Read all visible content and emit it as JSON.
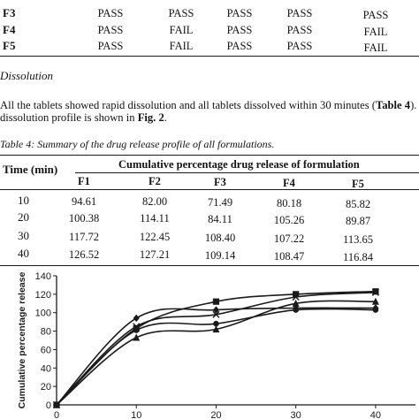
{
  "test_table": {
    "rows": [
      {
        "label": "F3",
        "cells": [
          "PASS",
          "PASS",
          "PASS",
          "PASS",
          "PASS"
        ]
      },
      {
        "label": "F4",
        "cells": [
          "PASS",
          "FAIL",
          "PASS",
          "PASS",
          "FAIL"
        ]
      },
      {
        "label": "F5",
        "cells": [
          "PASS",
          "FAIL",
          "PASS",
          "PASS",
          "FAIL"
        ]
      }
    ]
  },
  "dissolution": {
    "heading": "Dissolution",
    "para_line1_a": "All the tablets showed rapid dissolution and all tablets dissolved within 30 minutes (",
    "para_line1_b": "Table 4",
    "para_line1_c": "). The",
    "para_line2_a": "dissolution profile is shown in ",
    "para_line2_b": "Fig. 2",
    "para_line2_c": "."
  },
  "release_table": {
    "caption": "Table 4: Summary of the drug release profile of all formulations.",
    "time_header": "Time (min)",
    "group_header": "Cumulative percentage drug release of formulation",
    "columns": [
      "F1",
      "F2",
      "F3",
      "F4",
      "F5"
    ],
    "rows": [
      {
        "time": "10",
        "values": [
          "94.61",
          "82.00",
          "71.49",
          "80.18",
          "85.82"
        ]
      },
      {
        "time": "20",
        "values": [
          "100.38",
          "114.11",
          "84.11",
          "105.26",
          "89.87"
        ]
      },
      {
        "time": "30",
        "values": [
          "117.72",
          "122.45",
          "108.40",
          "107.22",
          "113.65"
        ]
      },
      {
        "time": "40",
        "values": [
          "126.52",
          "127.21",
          "109.14",
          "108.47",
          "116.84"
        ]
      }
    ]
  },
  "chart_data": {
    "type": "line",
    "title": "",
    "xlabel": "",
    "ylabel": "Cumulative percentage release",
    "x": [
      0,
      10,
      20,
      30,
      40
    ],
    "x_ticks": [
      "0",
      "10",
      "20",
      "30",
      "40"
    ],
    "y_ticks": [
      "0",
      "20",
      "40",
      "60",
      "80",
      "100",
      "120",
      "140"
    ],
    "ylim": [
      0,
      140
    ],
    "xlim": [
      0,
      45
    ],
    "series": [
      {
        "values": [
          0,
          94,
          103,
          105,
          105
        ],
        "marker": "diamond",
        "color": "#1a1a1a"
      },
      {
        "values": [
          0,
          83,
          112,
          120,
          123
        ],
        "marker": "square",
        "color": "#1a1a1a"
      },
      {
        "values": [
          0,
          73,
          82,
          110,
          112
        ],
        "marker": "triangle",
        "color": "#1a1a1a"
      },
      {
        "values": [
          0,
          85,
          98,
          117,
          122
        ],
        "marker": "x",
        "color": "#1a1a1a"
      },
      {
        "values": [
          0,
          81,
          88,
          103,
          103
        ],
        "marker": "circle",
        "color": "#1a1a1a"
      }
    ]
  }
}
